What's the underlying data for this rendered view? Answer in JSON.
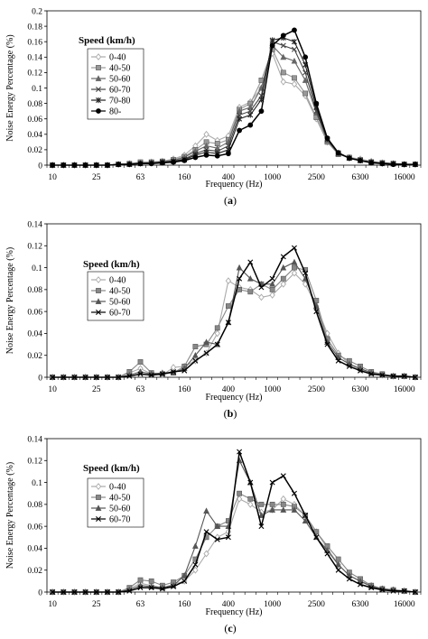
{
  "chart_data": [
    {
      "type": "line",
      "caption": "(a)",
      "xlabel": "Frequency (Hz)",
      "ylabel": "Noise Energy Percentage (%)",
      "ylim": [
        0,
        0.2
      ],
      "yticks": [
        "0",
        "0.02",
        "0.04",
        "0.06",
        "0.08",
        "0.1",
        "0.12",
        "0.14",
        "0.16",
        "0.18",
        "0.2"
      ],
      "x_tick_labels": [
        "10",
        "25",
        "63",
        "160",
        "400",
        "1000",
        "2500",
        "6300",
        "16000"
      ],
      "bands": [
        "10",
        "12.5",
        "16",
        "20",
        "25",
        "31.5",
        "40",
        "50",
        "63",
        "80",
        "100",
        "125",
        "160",
        "200",
        "250",
        "315",
        "400",
        "500",
        "630",
        "800",
        "1000",
        "1250",
        "1600",
        "2000",
        "2500",
        "3150",
        "4000",
        "5000",
        "6300",
        "8000",
        "10000",
        "12500",
        "16000",
        "20000"
      ],
      "legend_title": "Speed (km/h)",
      "series": [
        {
          "name": "0-40",
          "marker": "diamond",
          "color": "#aaaaaa",
          "values": [
            0,
            0,
            0,
            0,
            0,
            0,
            0.001,
            0.002,
            0.003,
            0.004,
            0.005,
            0.008,
            0.013,
            0.025,
            0.04,
            0.032,
            0.038,
            0.075,
            0.082,
            0.1,
            0.145,
            0.108,
            0.105,
            0.09,
            0.06,
            0.03,
            0.015,
            0.01,
            0.008,
            0.005,
            0.003,
            0.002,
            0.001,
            0.001
          ]
        },
        {
          "name": "40-50",
          "marker": "square",
          "color": "#999999",
          "values": [
            0,
            0,
            0,
            0,
            0,
            0,
            0.001,
            0.002,
            0.004,
            0.004,
            0.005,
            0.007,
            0.011,
            0.02,
            0.03,
            0.028,
            0.033,
            0.072,
            0.08,
            0.11,
            0.15,
            0.12,
            0.113,
            0.093,
            0.062,
            0.03,
            0.014,
            0.01,
            0.007,
            0.004,
            0.003,
            0.002,
            0.001,
            0.001
          ]
        },
        {
          "name": "50-60",
          "marker": "triangle",
          "color": "#666666",
          "values": [
            0,
            0,
            0,
            0,
            0,
            0,
            0.001,
            0.002,
            0.003,
            0.003,
            0.004,
            0.006,
            0.01,
            0.018,
            0.025,
            0.022,
            0.03,
            0.07,
            0.075,
            0.1,
            0.155,
            0.14,
            0.135,
            0.11,
            0.068,
            0.032,
            0.015,
            0.01,
            0.006,
            0.004,
            0.003,
            0.002,
            0.001,
            0.001
          ]
        },
        {
          "name": "60-70",
          "marker": "x",
          "color": "#444444",
          "values": [
            0,
            0,
            0,
            0,
            0,
            0,
            0.001,
            0.001,
            0.002,
            0.003,
            0.004,
            0.005,
            0.008,
            0.015,
            0.02,
            0.018,
            0.025,
            0.065,
            0.07,
            0.09,
            0.16,
            0.155,
            0.15,
            0.12,
            0.07,
            0.033,
            0.015,
            0.009,
            0.006,
            0.004,
            0.003,
            0.002,
            0.001,
            0.001
          ]
        },
        {
          "name": "70-80",
          "marker": "star",
          "color": "#222222",
          "values": [
            0,
            0,
            0,
            0,
            0,
            0,
            0.001,
            0.001,
            0.002,
            0.003,
            0.004,
            0.005,
            0.007,
            0.013,
            0.017,
            0.015,
            0.02,
            0.06,
            0.065,
            0.085,
            0.162,
            0.165,
            0.16,
            0.13,
            0.075,
            0.034,
            0.016,
            0.009,
            0.006,
            0.004,
            0.002,
            0.002,
            0.001,
            0.001
          ]
        },
        {
          "name": "80-",
          "marker": "circle",
          "color": "#000000",
          "values": [
            0,
            0,
            0,
            0,
            0,
            0,
            0.001,
            0.001,
            0.002,
            0.002,
            0.003,
            0.004,
            0.006,
            0.01,
            0.013,
            0.012,
            0.015,
            0.045,
            0.052,
            0.07,
            0.155,
            0.168,
            0.175,
            0.14,
            0.08,
            0.035,
            0.016,
            0.009,
            0.006,
            0.003,
            0.002,
            0.001,
            0.001,
            0.001
          ]
        }
      ]
    },
    {
      "type": "line",
      "caption": "(b)",
      "xlabel": "Frequency (Hz)",
      "ylabel": "Noise Energy Percentage (%)",
      "ylim": [
        0,
        0.14
      ],
      "yticks": [
        "0",
        "0.02",
        "0.04",
        "0.06",
        "0.08",
        "0.1",
        "0.12",
        "0.14"
      ],
      "x_tick_labels": [
        "10",
        "25",
        "63",
        "160",
        "400",
        "1000",
        "2500",
        "6300",
        "16000"
      ],
      "bands": [
        "10",
        "12.5",
        "16",
        "20",
        "25",
        "31.5",
        "40",
        "50",
        "63",
        "80",
        "100",
        "125",
        "160",
        "200",
        "250",
        "315",
        "400",
        "500",
        "630",
        "800",
        "1000",
        "1250",
        "1600",
        "2000",
        "2500",
        "3150",
        "4000",
        "5000",
        "6300",
        "8000",
        "10000",
        "12500",
        "16000",
        "20000"
      ],
      "legend_title": "Speed (km/h)",
      "series": [
        {
          "name": "0-40",
          "marker": "diamond",
          "color": "#aaaaaa",
          "values": [
            0,
            0,
            0,
            0,
            0,
            0,
            0,
            0.004,
            0.008,
            0.003,
            0.002,
            0.009,
            0.01,
            0.015,
            0.022,
            0.04,
            0.088,
            0.082,
            0.08,
            0.073,
            0.075,
            0.085,
            0.095,
            0.085,
            0.065,
            0.04,
            0.022,
            0.012,
            0.007,
            0.004,
            0.002,
            0.001,
            0.001,
            0
          ]
        },
        {
          "name": "40-50",
          "marker": "square",
          "color": "#888888",
          "values": [
            0,
            0,
            0,
            0,
            0,
            0,
            0,
            0.005,
            0.014,
            0.004,
            0.003,
            0.004,
            0.01,
            0.028,
            0.03,
            0.045,
            0.065,
            0.08,
            0.078,
            0.085,
            0.08,
            0.09,
            0.1,
            0.098,
            0.07,
            0.035,
            0.02,
            0.015,
            0.01,
            0.005,
            0.003,
            0.001,
            0.001,
            0
          ]
        },
        {
          "name": "50-60",
          "marker": "triangle",
          "color": "#555555",
          "values": [
            0,
            0,
            0,
            0,
            0,
            0,
            0,
            0.002,
            0.005,
            0.003,
            0.004,
            0.004,
            0.008,
            0.02,
            0.032,
            0.03,
            0.05,
            0.1,
            0.09,
            0.085,
            0.085,
            0.1,
            0.105,
            0.09,
            0.065,
            0.032,
            0.018,
            0.012,
            0.008,
            0.004,
            0.002,
            0.001,
            0.001,
            0
          ]
        },
        {
          "name": "60-70",
          "marker": "x",
          "color": "#000000",
          "values": [
            0,
            0,
            0,
            0,
            0,
            0,
            0,
            0.001,
            0.003,
            0.002,
            0.003,
            0.005,
            0.006,
            0.015,
            0.022,
            0.03,
            0.05,
            0.09,
            0.105,
            0.082,
            0.09,
            0.11,
            0.118,
            0.095,
            0.06,
            0.03,
            0.015,
            0.01,
            0.006,
            0.003,
            0.002,
            0.001,
            0.001,
            0
          ]
        }
      ]
    },
    {
      "type": "line",
      "caption": "(c)",
      "xlabel": "Frequency (Hz)",
      "ylabel": "Noise Energy Percentage (%)",
      "ylim": [
        0,
        0.14
      ],
      "yticks": [
        "0",
        "0.02",
        "0.04",
        "0.06",
        "0.08",
        "0.1",
        "0.12",
        "0.14"
      ],
      "x_tick_labels": [
        "10",
        "25",
        "63",
        "160",
        "400",
        "1000",
        "2500",
        "6300",
        "16000"
      ],
      "bands": [
        "10",
        "12.5",
        "16",
        "20",
        "25",
        "31.5",
        "40",
        "50",
        "63",
        "80",
        "100",
        "125",
        "160",
        "200",
        "250",
        "315",
        "400",
        "500",
        "630",
        "800",
        "1000",
        "1250",
        "1600",
        "2000",
        "2500",
        "3150",
        "4000",
        "5000",
        "6300",
        "8000",
        "10000",
        "12500",
        "16000",
        "20000"
      ],
      "legend_title": "Speed (km/h)",
      "series": [
        {
          "name": "0-40",
          "marker": "diamond",
          "color": "#aaaaaa",
          "values": [
            0,
            0,
            0,
            0,
            0,
            0,
            0,
            0.003,
            0.008,
            0.006,
            0.004,
            0.007,
            0.01,
            0.02,
            0.035,
            0.05,
            0.055,
            0.085,
            0.08,
            0.073,
            0.075,
            0.085,
            0.08,
            0.07,
            0.055,
            0.04,
            0.025,
            0.015,
            0.01,
            0.006,
            0.003,
            0.002,
            0.001,
            0
          ]
        },
        {
          "name": "40-50",
          "marker": "square",
          "color": "#888888",
          "values": [
            0,
            0,
            0,
            0,
            0,
            0,
            0,
            0.004,
            0.011,
            0.01,
            0.006,
            0.009,
            0.015,
            0.03,
            0.05,
            0.06,
            0.065,
            0.09,
            0.085,
            0.08,
            0.08,
            0.08,
            0.078,
            0.07,
            0.055,
            0.042,
            0.03,
            0.018,
            0.012,
            0.006,
            0.003,
            0.002,
            0.001,
            0
          ]
        },
        {
          "name": "50-60",
          "marker": "triangle",
          "color": "#555555",
          "values": [
            0,
            0,
            0,
            0,
            0,
            0,
            0,
            0.002,
            0.006,
            0.005,
            0.004,
            0.006,
            0.015,
            0.042,
            0.074,
            0.06,
            0.06,
            0.12,
            0.1,
            0.07,
            0.075,
            0.075,
            0.075,
            0.065,
            0.05,
            0.038,
            0.025,
            0.015,
            0.01,
            0.005,
            0.003,
            0.002,
            0.001,
            0
          ]
        },
        {
          "name": "60-70",
          "marker": "x",
          "color": "#000000",
          "values": [
            0,
            0,
            0,
            0,
            0,
            0,
            0,
            0.001,
            0.004,
            0.004,
            0.003,
            0.005,
            0.01,
            0.025,
            0.055,
            0.048,
            0.05,
            0.128,
            0.1,
            0.06,
            0.1,
            0.106,
            0.09,
            0.07,
            0.05,
            0.035,
            0.02,
            0.012,
            0.007,
            0.004,
            0.002,
            0.001,
            0.001,
            0
          ]
        }
      ]
    }
  ]
}
